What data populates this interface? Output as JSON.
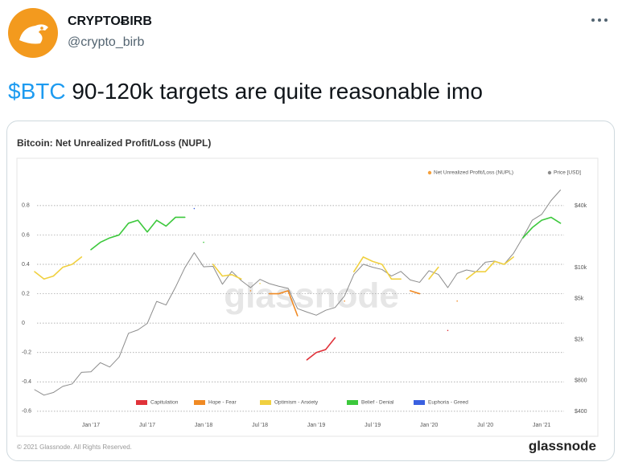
{
  "user": {
    "name": "CRYPTOɃIRB",
    "handle": "@crypto_birb"
  },
  "tweet": {
    "cashtag": "$BTC",
    "text": "90-120k targets are quite reasonable imo"
  },
  "card": {
    "copyright": "© 2021 Glassnode. All Rights Reserved.",
    "brand": "glassnode"
  },
  "chart_data": {
    "type": "line",
    "title": "Bitcoin: Net Unrealized Profit/Loss (NUPL)",
    "watermark": "glassnode",
    "nupl_legend": {
      "name": "Net Unrealized Profit/Loss (NUPL)",
      "color": "#f5a03c"
    },
    "categories": [
      null,
      null,
      null,
      null,
      null,
      null,
      "Jan '17",
      null,
      null,
      null,
      null,
      null,
      "Jul '17",
      null,
      null,
      null,
      null,
      null,
      "Jan '18",
      null,
      null,
      null,
      null,
      null,
      "Jul '18",
      null,
      null,
      null,
      null,
      null,
      "Jan '19",
      null,
      null,
      null,
      null,
      null,
      "Jul '19",
      null,
      null,
      null,
      null,
      null,
      "Jan '20",
      null,
      null,
      null,
      null,
      null,
      "Jul '20",
      null,
      null,
      null,
      null,
      null,
      "Jan '21",
      null,
      null
    ],
    "ylim": [
      -0.65,
      1.1
    ],
    "yticks": [
      0.8,
      0.6,
      0.4,
      0.2,
      0,
      -0.2,
      -0.4,
      -0.6
    ],
    "y2lim": [
      340,
      108000
    ],
    "y2scale": "log",
    "y2ticks": [
      {
        "value": 40000,
        "label": "$40k"
      },
      {
        "value": 10000,
        "label": "$10k"
      },
      {
        "value": 5000,
        "label": "$5k"
      },
      {
        "value": 2000,
        "label": "$2k"
      },
      {
        "value": 800,
        "label": "$800"
      },
      {
        "value": 400,
        "label": "$400"
      }
    ],
    "grid": true,
    "series": [
      {
        "name": "Capitulation",
        "color": "#e0323a",
        "values": [
          null,
          null,
          null,
          null,
          null,
          null,
          null,
          null,
          null,
          null,
          null,
          null,
          null,
          null,
          null,
          null,
          null,
          null,
          null,
          null,
          null,
          null,
          null,
          null,
          null,
          null,
          null,
          null,
          null,
          -0.25,
          -0.2,
          -0.18,
          -0.1,
          null,
          null,
          null,
          null,
          null,
          null,
          null,
          null,
          null,
          null,
          null,
          -0.05,
          null,
          null,
          null,
          null,
          null,
          null,
          null,
          null,
          null,
          null,
          null,
          null
        ]
      },
      {
        "name": "Hope - Fear",
        "color": "#f08a24",
        "values": [
          null,
          null,
          null,
          null,
          null,
          null,
          null,
          null,
          null,
          null,
          null,
          null,
          null,
          null,
          null,
          null,
          null,
          null,
          null,
          null,
          null,
          null,
          null,
          0.22,
          null,
          0.2,
          0.2,
          0.22,
          0.05,
          null,
          null,
          null,
          null,
          0.15,
          null,
          null,
          null,
          null,
          null,
          null,
          0.22,
          0.2,
          null,
          null,
          null,
          0.15,
          null,
          null,
          null,
          null,
          null,
          null,
          null,
          null,
          null,
          null,
          null
        ]
      },
      {
        "name": "Optimism - Anxiety",
        "color": "#f0d040",
        "values": [
          0.35,
          0.3,
          0.32,
          0.38,
          0.4,
          0.45,
          null,
          null,
          null,
          null,
          null,
          null,
          null,
          null,
          null,
          null,
          null,
          null,
          null,
          0.4,
          0.32,
          0.33,
          0.3,
          null,
          0.27,
          null,
          null,
          null,
          null,
          null,
          null,
          null,
          null,
          null,
          0.35,
          0.45,
          0.42,
          0.4,
          0.3,
          0.3,
          null,
          null,
          0.3,
          0.38,
          null,
          null,
          0.3,
          0.35,
          0.35,
          0.42,
          0.4,
          0.45,
          null,
          null,
          null,
          null,
          null
        ]
      },
      {
        "name": "Belief - Denial",
        "color": "#3cc83c",
        "values": [
          null,
          null,
          null,
          null,
          null,
          null,
          0.5,
          0.55,
          0.58,
          0.6,
          0.68,
          0.7,
          0.62,
          0.7,
          0.66,
          0.72,
          0.72,
          null,
          0.55,
          null,
          null,
          null,
          null,
          null,
          null,
          null,
          null,
          null,
          null,
          null,
          null,
          null,
          null,
          null,
          null,
          null,
          null,
          null,
          null,
          null,
          null,
          null,
          null,
          null,
          null,
          null,
          null,
          null,
          null,
          null,
          null,
          null,
          0.58,
          0.65,
          0.7,
          0.72,
          0.68
        ]
      },
      {
        "name": "Euphoria - Greed",
        "color": "#3a60e0",
        "values": [
          null,
          null,
          null,
          null,
          null,
          null,
          null,
          null,
          null,
          null,
          null,
          null,
          null,
          null,
          null,
          null,
          null,
          0.78,
          null,
          null,
          null,
          null,
          null,
          null,
          null,
          null,
          null,
          null,
          null,
          null,
          null,
          null,
          null,
          null,
          null,
          null,
          null,
          null,
          null,
          null,
          null,
          null,
          null,
          null,
          null,
          null,
          null,
          null,
          null,
          null,
          null,
          null,
          null,
          null,
          null,
          null,
          null
        ]
      },
      {
        "name": "Price [USD]",
        "color": "#8c8c8c",
        "axis": "y2",
        "values": [
          650,
          575,
          610,
          700,
          740,
          960,
          970,
          1190,
          1080,
          1350,
          2300,
          2480,
          2870,
          4700,
          4340,
          6450,
          10000,
          14000,
          10200,
          10300,
          6900,
          9200,
          7500,
          6400,
          7700,
          7000,
          6600,
          6300,
          4000,
          3700,
          3450,
          3850,
          4100,
          5300,
          8600,
          10800,
          10100,
          9600,
          8300,
          9200,
          7600,
          7200,
          9350,
          8600,
          6400,
          8800,
          9500,
          9100,
          11300,
          11600,
          10800,
          13800,
          19700,
          29000,
          33000,
          45000,
          57000
        ]
      }
    ]
  }
}
